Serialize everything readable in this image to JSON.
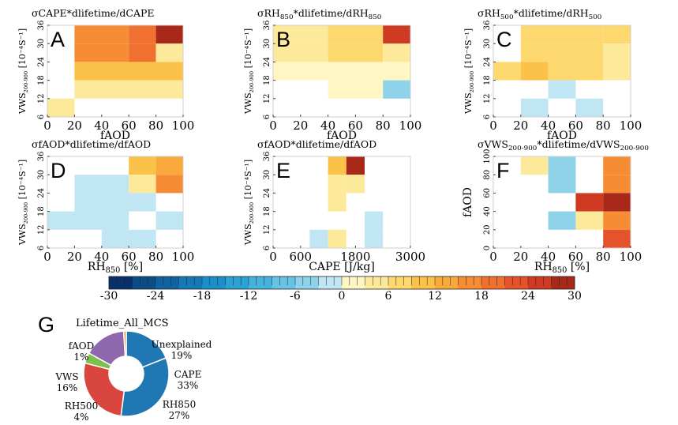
{
  "chart_data": {
    "heatmaps": [
      {
        "letter": "A",
        "title": "σCAPE*dlifetime/dCAPE",
        "title_parts": [
          [
            "σCAPE*dlifetime/dCAPE",
            ""
          ]
        ],
        "type": "heatmap",
        "x_ticks": [
          "0",
          "20",
          "40",
          "60",
          "80",
          "100"
        ],
        "xlabel_parts": [
          [
            "fAOD",
            ""
          ]
        ],
        "y_ticks": [
          "6",
          "12",
          "18",
          "24",
          "30",
          "36"
        ],
        "ylabel": "VWS200-900 [10⁻⁴S⁻¹]",
        "x_range": [
          0,
          100
        ],
        "y_range": [
          6,
          36
        ],
        "cells": [
          {
            "x": [
              20,
              60
            ],
            "y": [
              30,
              36
            ],
            "value": 17
          },
          {
            "x": [
              60,
              80
            ],
            "y": [
              30,
              36
            ],
            "value": 20
          },
          {
            "x": [
              80,
              100
            ],
            "y": [
              30,
              36
            ],
            "value": 29
          },
          {
            "x": [
              20,
              60
            ],
            "y": [
              24,
              30
            ],
            "value": 17
          },
          {
            "x": [
              60,
              80
            ],
            "y": [
              24,
              30
            ],
            "value": 20
          },
          {
            "x": [
              80,
              100
            ],
            "y": [
              24,
              30
            ],
            "value": 4
          },
          {
            "x": [
              20,
              100
            ],
            "y": [
              18,
              24
            ],
            "value": 9
          },
          {
            "x": [
              20,
              100
            ],
            "y": [
              12,
              18
            ],
            "value": 5
          },
          {
            "x": [
              0,
              20
            ],
            "y": [
              6,
              12
            ],
            "value": 5
          }
        ]
      },
      {
        "letter": "B",
        "title": "σRH850*dlifetime/dRH850",
        "title_parts": [
          [
            "σRH",
            ""
          ],
          [
            "850",
            "sub"
          ],
          [
            "*dlifetime/dRH",
            ""
          ],
          [
            "850",
            "sub"
          ]
        ],
        "type": "heatmap",
        "x_ticks": [
          "0",
          "20",
          "40",
          "60",
          "80",
          "100"
        ],
        "xlabel_parts": [
          [
            "fAOD",
            ""
          ]
        ],
        "y_ticks": [
          "6",
          "12",
          "18",
          "24",
          "30",
          "36"
        ],
        "ylabel": "VWS200-900 [10⁻⁴S⁻¹]",
        "x_range": [
          0,
          100
        ],
        "y_range": [
          6,
          36
        ],
        "cells": [
          {
            "x": [
              0,
              40
            ],
            "y": [
              30,
              36
            ],
            "value": 3
          },
          {
            "x": [
              40,
              80
            ],
            "y": [
              30,
              36
            ],
            "value": 7
          },
          {
            "x": [
              80,
              100
            ],
            "y": [
              30,
              36
            ],
            "value": 26
          },
          {
            "x": [
              0,
              40
            ],
            "y": [
              24,
              30
            ],
            "value": 5
          },
          {
            "x": [
              40,
              80
            ],
            "y": [
              24,
              30
            ],
            "value": 7
          },
          {
            "x": [
              80,
              100
            ],
            "y": [
              24,
              30
            ],
            "value": 3
          },
          {
            "x": [
              0,
              100
            ],
            "y": [
              18,
              24
            ],
            "value": 2
          },
          {
            "x": [
              40,
              80
            ],
            "y": [
              12,
              18
            ],
            "value": 2
          },
          {
            "x": [
              80,
              100
            ],
            "y": [
              12,
              18
            ],
            "value": -3
          }
        ]
      },
      {
        "letter": "C",
        "title": "σRH500*dlifetime/dRH500",
        "title_parts": [
          [
            "σRH",
            ""
          ],
          [
            "500",
            "sub"
          ],
          [
            "*dlifetime/dRH",
            ""
          ],
          [
            "500",
            "sub"
          ]
        ],
        "type": "heatmap",
        "x_ticks": [
          "0",
          "20",
          "40",
          "60",
          "80",
          "100"
        ],
        "xlabel_parts": [
          [
            "fAOD",
            ""
          ]
        ],
        "y_ticks": [
          "6",
          "12",
          "18",
          "24",
          "30",
          "36"
        ],
        "ylabel": "VWS200-900 [10⁻⁴S⁻¹]",
        "x_range": [
          0,
          100
        ],
        "y_range": [
          6,
          36
        ],
        "cells": [
          {
            "x": [
              20,
              80
            ],
            "y": [
              30,
              36
            ],
            "value": 8
          },
          {
            "x": [
              80,
              100
            ],
            "y": [
              30,
              36
            ],
            "value": 6
          },
          {
            "x": [
              20,
              40
            ],
            "y": [
              24,
              30
            ],
            "value": 8
          },
          {
            "x": [
              40,
              80
            ],
            "y": [
              24,
              30
            ],
            "value": 6
          },
          {
            "x": [
              80,
              100
            ],
            "y": [
              24,
              30
            ],
            "value": 3
          },
          {
            "x": [
              0,
              20
            ],
            "y": [
              18,
              24
            ],
            "value": 8
          },
          {
            "x": [
              20,
              40
            ],
            "y": [
              18,
              24
            ],
            "value": 10
          },
          {
            "x": [
              40,
              80
            ],
            "y": [
              18,
              24
            ],
            "value": 7
          },
          {
            "x": [
              80,
              100
            ],
            "y": [
              18,
              24
            ],
            "value": 3
          },
          {
            "x": [
              40,
              60
            ],
            "y": [
              12,
              18
            ],
            "value": -2
          },
          {
            "x": [
              20,
              40
            ],
            "y": [
              6,
              12
            ],
            "value": -2
          },
          {
            "x": [
              60,
              80
            ],
            "y": [
              6,
              12
            ],
            "value": -2
          }
        ]
      },
      {
        "letter": "D",
        "title": "σfAOD*dlifetime/dfAOD",
        "title_parts": [
          [
            "σfAOD*dlifetime/dfAOD",
            ""
          ]
        ],
        "type": "heatmap",
        "x_ticks": [
          "0",
          "20",
          "40",
          "60",
          "80",
          "100"
        ],
        "xlabel_parts": [
          [
            "RH",
            ""
          ],
          [
            "850",
            "sub"
          ],
          [
            " [%]",
            ""
          ]
        ],
        "y_ticks": [
          "6",
          "12",
          "18",
          "24",
          "30",
          "36"
        ],
        "ylabel": "VWS200-900 [10⁻⁴S⁻¹]",
        "x_range": [
          0,
          100
        ],
        "y_range": [
          6,
          36
        ],
        "cells": [
          {
            "x": [
              60,
              80
            ],
            "y": [
              30,
              36
            ],
            "value": 10
          },
          {
            "x": [
              80,
              100
            ],
            "y": [
              30,
              36
            ],
            "value": 12
          },
          {
            "x": [
              60,
              80
            ],
            "y": [
              24,
              30
            ],
            "value": 4
          },
          {
            "x": [
              80,
              100
            ],
            "y": [
              24,
              30
            ],
            "value": 15
          },
          {
            "x": [
              20,
              60
            ],
            "y": [
              24,
              30
            ],
            "value": -2
          },
          {
            "x": [
              20,
              80
            ],
            "y": [
              18,
              24
            ],
            "value": -2
          },
          {
            "x": [
              0,
              60
            ],
            "y": [
              12,
              18
            ],
            "value": -2
          },
          {
            "x": [
              80,
              100
            ],
            "y": [
              12,
              18
            ],
            "value": -2
          },
          {
            "x": [
              40,
              80
            ],
            "y": [
              6,
              12
            ],
            "value": -2
          }
        ]
      },
      {
        "letter": "E",
        "title": "σfAOD*dlifetime/dfAOD",
        "title_parts": [
          [
            "σfAOD*dlifetime/dfAOD",
            ""
          ]
        ],
        "type": "heatmap",
        "x_ticks": [
          "0",
          "600",
          "1800",
          "3000"
        ],
        "x_tick_values": [
          0,
          600,
          1800,
          3000
        ],
        "xlabel_parts": [
          [
            "CAPE [J/kg]",
            ""
          ]
        ],
        "y_ticks": [
          "6",
          "12",
          "18",
          "24",
          "30",
          "36"
        ],
        "ylabel": "VWS200-900 [10⁻⁴S⁻¹]",
        "x_range": [
          0,
          3000
        ],
        "y_range": [
          6,
          36
        ],
        "cells": [
          {
            "x": [
              1200,
              1600
            ],
            "y": [
              30,
              36
            ],
            "value": 10
          },
          {
            "x": [
              1600,
              2000
            ],
            "y": [
              30,
              36
            ],
            "value": 27
          },
          {
            "x": [
              1200,
              1600
            ],
            "y": [
              24,
              30
            ],
            "value": 3
          },
          {
            "x": [
              1600,
              2000
            ],
            "y": [
              24,
              30
            ],
            "value": 3
          },
          {
            "x": [
              1200,
              1600
            ],
            "y": [
              18,
              24
            ],
            "value": 3
          },
          {
            "x": [
              2000,
              2400
            ],
            "y": [
              12,
              18
            ],
            "value": -2
          },
          {
            "x": [
              800,
              1200
            ],
            "y": [
              6,
              12
            ],
            "value": -2
          },
          {
            "x": [
              1200,
              1600
            ],
            "y": [
              6,
              12
            ],
            "value": 4
          },
          {
            "x": [
              2000,
              2400
            ],
            "y": [
              6,
              12
            ],
            "value": -2
          }
        ]
      },
      {
        "letter": "F",
        "title": "σVWS200-900*dlifetime/dVWS200-900",
        "title_parts": [
          [
            "σVWS",
            ""
          ],
          [
            "200-900",
            "sub"
          ],
          [
            "*dlifetime/dVWS",
            ""
          ],
          [
            "200-900",
            "sub"
          ]
        ],
        "type": "heatmap",
        "x_ticks": [
          "0",
          "20",
          "40",
          "60",
          "80",
          "100"
        ],
        "xlabel_parts": [
          [
            "RH",
            ""
          ],
          [
            "850",
            "sub"
          ],
          [
            " [%]",
            ""
          ]
        ],
        "y_ticks": [
          "0",
          "20",
          "40",
          "60",
          "80",
          "100"
        ],
        "ylabel": "fAOD",
        "x_range": [
          0,
          100
        ],
        "y_range": [
          0,
          100
        ],
        "cells": [
          {
            "x": [
              20,
              40
            ],
            "y": [
              80,
              100
            ],
            "value": 3
          },
          {
            "x": [
              40,
              60
            ],
            "y": [
              60,
              100
            ],
            "value": -3
          },
          {
            "x": [
              80,
              100
            ],
            "y": [
              80,
              100
            ],
            "value": 15
          },
          {
            "x": [
              80,
              100
            ],
            "y": [
              60,
              80
            ],
            "value": 17
          },
          {
            "x": [
              60,
              80
            ],
            "y": [
              40,
              60
            ],
            "value": 25
          },
          {
            "x": [
              80,
              100
            ],
            "y": [
              40,
              60
            ],
            "value": 29
          },
          {
            "x": [
              40,
              60
            ],
            "y": [
              20,
              40
            ],
            "value": -5
          },
          {
            "x": [
              60,
              80
            ],
            "y": [
              20,
              40
            ],
            "value": 4
          },
          {
            "x": [
              80,
              100
            ],
            "y": [
              20,
              40
            ],
            "value": 17
          },
          {
            "x": [
              80,
              100
            ],
            "y": [
              0,
              20
            ],
            "value": 22
          }
        ]
      }
    ],
    "colorbar": {
      "min": -30,
      "max": 30,
      "ticks": [
        "-30",
        "-24",
        "-18",
        "-12",
        "-6",
        "0",
        "6",
        "12",
        "18",
        "24",
        "30"
      ],
      "tick_values": [
        -30,
        -24,
        -18,
        -12,
        -6,
        0,
        6,
        12,
        18,
        24,
        30
      ]
    },
    "pie": {
      "letter": "G",
      "type": "pie",
      "title": "Lifetime_All_MCS",
      "slices": [
        {
          "label": "Unexplained",
          "pct_label": "19%",
          "value": 19,
          "color": "#1f77b4"
        },
        {
          "label": "CAPE",
          "pct_label": "33%",
          "value": 33,
          "color": "#1f77b4"
        },
        {
          "label": "RH850",
          "pct_label": "27%",
          "value": 27,
          "color": "#d9463f"
        },
        {
          "label": "RH500",
          "pct_label": "4%",
          "value": 4,
          "color": "#7fbf4d"
        },
        {
          "label": "VWS",
          "pct_label": "16%",
          "value": 16,
          "color": "#8f67ad"
        },
        {
          "label": "fAOD",
          "pct_label": "1%",
          "value": 1,
          "color": "#f59a3a"
        }
      ]
    }
  }
}
